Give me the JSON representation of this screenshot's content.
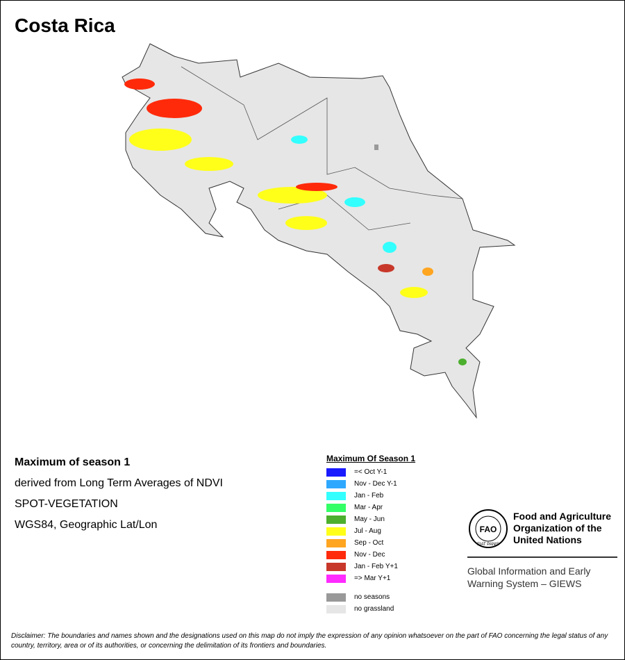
{
  "title": "Costa Rica",
  "info": [
    "Maximum of season 1",
    "derived from Long Term Averages of NDVI",
    "SPOT-VEGETATION",
    "WGS84, Geographic Lat/Lon"
  ],
  "legend": {
    "title": "Maximum Of Season 1",
    "items": [
      {
        "label": "=< Oct Y-1",
        "color": "#1a1aff"
      },
      {
        "label": "Nov - Dec Y-1",
        "color": "#2ea8ff"
      },
      {
        "label": "Jan - Feb",
        "color": "#33ffff"
      },
      {
        "label": "Mar - Apr",
        "color": "#33ff66"
      },
      {
        "label": "May - Jun",
        "color": "#4caf2e"
      },
      {
        "label": "Jul - Aug",
        "color": "#ffff1a"
      },
      {
        "label": "Sep - Oct",
        "color": "#ffa520"
      },
      {
        "label": "Nov - Dec",
        "color": "#ff2a0a"
      },
      {
        "label": "Jan - Feb Y+1",
        "color": "#c8382a"
      },
      {
        "label": "=> Mar Y+1",
        "color": "#ff2aff"
      }
    ],
    "extra": [
      {
        "label": "no seasons",
        "color": "#999999"
      },
      {
        "label": "no grassland",
        "color": "#e6e6e6"
      }
    ]
  },
  "logo": {
    "emblem": "FAO",
    "ring": "FIAT PANIS",
    "org": [
      "Food and Agriculture",
      "Organization of the",
      "United Nations"
    ],
    "system": [
      "Global Information and Early",
      "Warning System – GIEWS"
    ]
  },
  "disclaimer": "Disclaimer: The boundaries and names shown and the designations used on this map do not imply the expression of any opinion whatsoever on the part of FAO concerning the legal status of any country, territory, area or of its authorities, or concerning the delimitation of its frontiers and boundaries."
}
